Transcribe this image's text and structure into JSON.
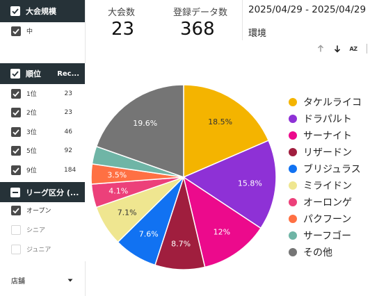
{
  "filters": {
    "size": {
      "header": "大会規模",
      "items": [
        {
          "label": "中",
          "checked": true
        }
      ]
    },
    "rank": {
      "header": "順位",
      "count_header": "Rec...",
      "items": [
        {
          "label": "1位",
          "count": "23"
        },
        {
          "label": "2位",
          "count": "23"
        },
        {
          "label": "3位",
          "count": "46"
        },
        {
          "label": "5位",
          "count": "92"
        },
        {
          "label": "9位",
          "count": "184"
        }
      ]
    },
    "league": {
      "header": "リーグ区分 (...",
      "items": [
        {
          "label": "オープン",
          "checked": true
        },
        {
          "label": "シニア",
          "checked": false
        },
        {
          "label": "ジュニア",
          "checked": false
        }
      ]
    },
    "store": {
      "label": "店舗"
    }
  },
  "kpis": {
    "tournaments": {
      "label": "大会数",
      "value": "23"
    },
    "registrations": {
      "label": "登録データ数",
      "value": "368"
    }
  },
  "date_range": "2025/04/29 - 2025/04/29",
  "environment_label": "環境",
  "toolbar": {
    "sort_asc": "arrow-up-icon",
    "sort_desc": "arrow-down-icon",
    "sort_az": "AZ"
  },
  "chart_data": {
    "type": "pie",
    "slices": [
      {
        "name": "タケルライコ",
        "value": 18.5,
        "label": "18.5%",
        "color": "#F4B400"
      },
      {
        "name": "ドラパルト",
        "value": 15.8,
        "label": "15.8%",
        "color": "#8E31D6"
      },
      {
        "name": "サーナイト",
        "value": 12.0,
        "label": "12%",
        "color": "#EC0A8C"
      },
      {
        "name": "リザードン",
        "value": 8.7,
        "label": "8.7%",
        "color": "#A01E3E"
      },
      {
        "name": "ブリジュラス",
        "value": 7.6,
        "label": "7.6%",
        "color": "#1172F2"
      },
      {
        "name": "ミライドン",
        "value": 7.1,
        "label": "7.1%",
        "color": "#EFE690"
      },
      {
        "name": "オーロンゲ",
        "value": 4.1,
        "label": "4.1%",
        "color": "#EC407A"
      },
      {
        "name": "パクフーン",
        "value": 3.5,
        "label": "3.5%",
        "color": "#FF7043"
      },
      {
        "name": "サーフゴー",
        "value": 3.1,
        "label": "",
        "color": "#6FB5A6"
      },
      {
        "name": "その他",
        "value": 19.6,
        "label": "19.6%",
        "color": "#757575"
      }
    ],
    "legend": "right"
  }
}
